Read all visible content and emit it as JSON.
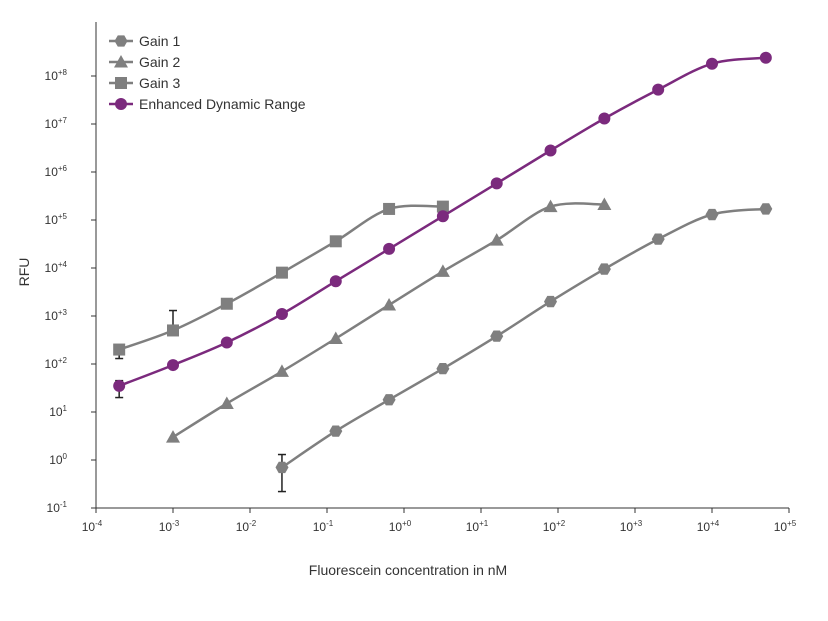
{
  "chart_data": {
    "type": "line",
    "xlabel": "Fluorescein concentration in nM",
    "ylabel": "RFU",
    "x_scale": "log",
    "y_scale": "log",
    "xlim": [
      0.0001,
      100000
    ],
    "ylim": [
      0.1,
      1000000000
    ],
    "x_ticks": [
      {
        "value": 0.0001,
        "base": "10",
        "exp": "-4"
      },
      {
        "value": 0.001,
        "base": "10",
        "exp": "-3"
      },
      {
        "value": 0.01,
        "base": "10",
        "exp": "-2"
      },
      {
        "value": 0.1,
        "base": "10",
        "exp": "-1"
      },
      {
        "value": 1,
        "base": "10",
        "exp": "+0"
      },
      {
        "value": 10,
        "base": "10",
        "exp": "+1"
      },
      {
        "value": 100,
        "base": "10",
        "exp": "+2"
      },
      {
        "value": 1000,
        "base": "10",
        "exp": "+3"
      },
      {
        "value": 10000,
        "base": "10",
        "exp": "+4"
      },
      {
        "value": 100000,
        "base": "10",
        "exp": "+5"
      }
    ],
    "y_ticks": [
      {
        "value": 0.1,
        "base": "10",
        "exp": "-1"
      },
      {
        "value": 1,
        "base": "10",
        "exp": "0"
      },
      {
        "value": 10,
        "base": "10",
        "exp": "1"
      },
      {
        "value": 100,
        "base": "10",
        "exp": "+2"
      },
      {
        "value": 1000,
        "base": "10",
        "exp": "+3"
      },
      {
        "value": 10000,
        "base": "10",
        "exp": "+4"
      },
      {
        "value": 100000,
        "base": "10",
        "exp": "+5"
      },
      {
        "value": 1000000,
        "base": "10",
        "exp": "+6"
      },
      {
        "value": 10000000,
        "base": "10",
        "exp": "+7"
      },
      {
        "value": 100000000,
        "base": "10",
        "exp": "+8"
      }
    ],
    "grid": false,
    "legend_position": "top-left",
    "series": [
      {
        "name": "Gain 1",
        "marker": "hexagon",
        "color": "#7f7f7f",
        "points": [
          {
            "x": 0.026,
            "y": 0.7,
            "err_low": 0.22,
            "err_high": 1.3
          },
          {
            "x": 0.13,
            "y": 4
          },
          {
            "x": 0.64,
            "y": 18
          },
          {
            "x": 3.2,
            "y": 80
          },
          {
            "x": 16,
            "y": 380
          },
          {
            "x": 80,
            "y": 2000
          },
          {
            "x": 400,
            "y": 9500
          },
          {
            "x": 2000,
            "y": 40000
          },
          {
            "x": 10000,
            "y": 130000
          },
          {
            "x": 50000,
            "y": 170000
          }
        ]
      },
      {
        "name": "Gain 2",
        "marker": "triangle",
        "color": "#7f7f7f",
        "points": [
          {
            "x": 0.001,
            "y": 3
          },
          {
            "x": 0.005,
            "y": 15
          },
          {
            "x": 0.026,
            "y": 70
          },
          {
            "x": 0.13,
            "y": 340
          },
          {
            "x": 0.64,
            "y": 1700
          },
          {
            "x": 3.2,
            "y": 8500
          },
          {
            "x": 16,
            "y": 38000
          },
          {
            "x": 80,
            "y": 190000
          },
          {
            "x": 400,
            "y": 210000
          }
        ]
      },
      {
        "name": "Gain 3",
        "marker": "square",
        "color": "#7f7f7f",
        "points": [
          {
            "x": 0.0002,
            "y": 200,
            "err_low": 130
          },
          {
            "x": 0.001,
            "y": 500,
            "err_high": 1300
          },
          {
            "x": 0.005,
            "y": 1800
          },
          {
            "x": 0.026,
            "y": 8000
          },
          {
            "x": 0.13,
            "y": 36000
          },
          {
            "x": 0.64,
            "y": 170000
          },
          {
            "x": 3.2,
            "y": 190000
          }
        ]
      },
      {
        "name": "Enhanced Dynamic Range",
        "marker": "circle",
        "color": "#7b2a7d",
        "points": [
          {
            "x": 0.0002,
            "y": 35,
            "err_low": 20,
            "err_high": 45
          },
          {
            "x": 0.001,
            "y": 95
          },
          {
            "x": 0.005,
            "y": 280
          },
          {
            "x": 0.026,
            "y": 1100
          },
          {
            "x": 0.13,
            "y": 5300
          },
          {
            "x": 0.64,
            "y": 25000
          },
          {
            "x": 3.2,
            "y": 120000
          },
          {
            "x": 16,
            "y": 580000
          },
          {
            "x": 80,
            "y": 2800000
          },
          {
            "x": 400,
            "y": 13000000
          },
          {
            "x": 2000,
            "y": 52000000
          },
          {
            "x": 10000,
            "y": 180000000
          },
          {
            "x": 50000,
            "y": 240000000
          }
        ]
      }
    ]
  }
}
